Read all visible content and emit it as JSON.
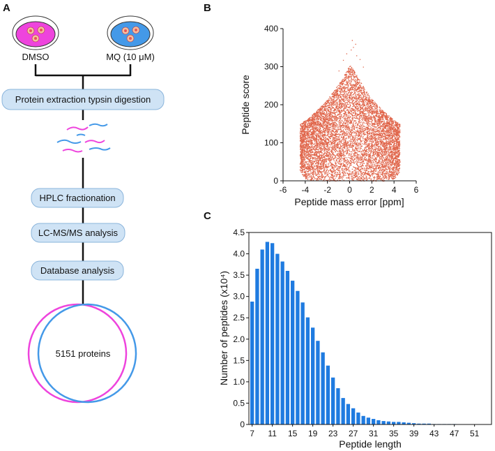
{
  "panel_a": {
    "letter": "A",
    "dish_left_label": "DMSO",
    "dish_right_label": "MQ (10 μM)",
    "steps": [
      "Protein extraction  typsin digestion",
      "HPLC fractionation",
      "LC-MS/MS analysis",
      "Database analysis"
    ],
    "venn_label": "5151 proteins",
    "colors": {
      "dmso": "#ee44dd",
      "mq": "#4499e8",
      "box": "#cfe3f5",
      "cell": "#e85555"
    }
  },
  "chart_data": [
    {
      "panel": "B",
      "type": "scatter",
      "title": "",
      "xlabel": "Peptide mass error [ppm]",
      "ylabel": "Peptide score",
      "xlim": [
        -6,
        6
      ],
      "ylim": [
        0,
        400
      ],
      "xticks": [
        -6,
        -4,
        -2,
        0,
        2,
        4,
        6
      ],
      "yticks": [
        0,
        100,
        200,
        300,
        400
      ],
      "color": "#e0654a",
      "envelope": {
        "x": [
          -4.5,
          -4,
          -3,
          -2,
          -1.5,
          -1,
          -0.5,
          0,
          0.5,
          1,
          1.5,
          2,
          3,
          4,
          4.5
        ],
        "ymin": [
          25,
          5,
          0,
          0,
          0,
          0,
          0,
          0,
          0,
          0,
          0,
          0,
          0,
          5,
          25
        ],
        "ymax": [
          150,
          160,
          185,
          215,
          235,
          255,
          280,
          305,
          285,
          260,
          235,
          215,
          185,
          160,
          150
        ]
      },
      "outliers": [
        [
          0.2,
          370
        ],
        [
          0.5,
          360
        ],
        [
          0.1,
          345
        ],
        [
          -0.3,
          335
        ],
        [
          0.6,
          330
        ],
        [
          0.9,
          320
        ],
        [
          -0.6,
          318
        ],
        [
          0.3,
          352
        ],
        [
          1.2,
          300
        ],
        [
          -1,
          290
        ]
      ]
    },
    {
      "panel": "C",
      "type": "bar",
      "title": "",
      "xlabel": "Peptide length",
      "ylabel": "Number of peptides (x10⁴)",
      "ylim": [
        0,
        4.5
      ],
      "yticks": [
        0,
        0.5,
        1.0,
        1.5,
        2.0,
        2.5,
        3.0,
        3.5,
        4.0,
        4.5
      ],
      "ytick_labels": [
        "0",
        "0.5",
        "1.0",
        "1.5",
        "2.0",
        "2.5",
        "3.0",
        "3.5",
        "4.0",
        "4.5"
      ],
      "categories": [
        7,
        8,
        9,
        10,
        11,
        12,
        13,
        14,
        15,
        16,
        17,
        18,
        19,
        20,
        21,
        22,
        23,
        24,
        25,
        26,
        27,
        28,
        29,
        30,
        31,
        32,
        33,
        34,
        35,
        36,
        37,
        38,
        39,
        40,
        41,
        42,
        43,
        44,
        45,
        46,
        47,
        48,
        49,
        50,
        51,
        52
      ],
      "xtick_labels": [
        "7",
        "11",
        "15",
        "19",
        "23",
        "27",
        "31",
        "35",
        "39",
        "43",
        "47",
        "51"
      ],
      "values": [
        2.88,
        3.65,
        4.1,
        4.28,
        4.25,
        4.0,
        3.82,
        3.6,
        3.37,
        3.13,
        2.86,
        2.51,
        2.27,
        1.96,
        1.69,
        1.38,
        1.1,
        0.85,
        0.62,
        0.48,
        0.38,
        0.28,
        0.2,
        0.16,
        0.13,
        0.1,
        0.08,
        0.07,
        0.06,
        0.06,
        0.05,
        0.04,
        0.03,
        0.02,
        0.02,
        0.02,
        0.01,
        0.01,
        0.01,
        0.01,
        0.01,
        0.005,
        0.005,
        0.005,
        0.005,
        0.005
      ],
      "color": "#1f7be0"
    }
  ]
}
